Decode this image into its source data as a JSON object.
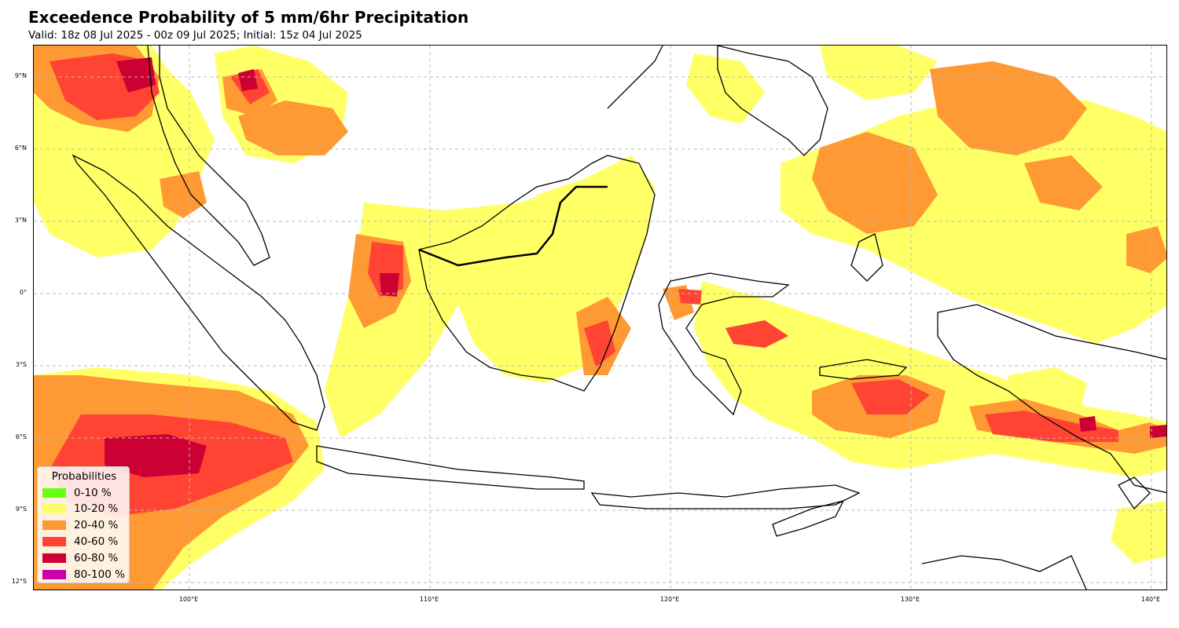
{
  "title": "Exceedence Probability of 5 mm/6hr Precipitation",
  "subtitle": "Valid: 18z 08 Jul 2025 - 00z 09 Jul 2025; Initial: 15z 04 Jul 2025",
  "map": {
    "region": "Maritime Continent / Indonesia",
    "lon_range": [
      93.5,
      140.7
    ],
    "lat_range": [
      -12.5,
      10.2
    ],
    "gridlines": "dashed",
    "lat_ticks": [
      {
        "value": 9,
        "label": "9°N"
      },
      {
        "value": 6,
        "label": "6°N"
      },
      {
        "value": 3,
        "label": "3°N"
      },
      {
        "value": 0,
        "label": "0°"
      },
      {
        "value": -3,
        "label": "3°S"
      },
      {
        "value": -6,
        "label": "6°S"
      },
      {
        "value": -9,
        "label": "9°S"
      },
      {
        "value": -12,
        "label": "12°S"
      }
    ],
    "lon_ticks": [
      {
        "value": 100,
        "label": "100°E"
      },
      {
        "value": 110,
        "label": "110°E"
      },
      {
        "value": 120,
        "label": "120°E"
      },
      {
        "value": 130,
        "label": "130°E"
      },
      {
        "value": 140,
        "label": "140°E"
      }
    ]
  },
  "legend": {
    "title": "Probabilities",
    "placement": "bottom-left",
    "items": [
      {
        "label": "0-10 %",
        "color": "#66ff11"
      },
      {
        "label": "10-20 %",
        "color": "#ffff66"
      },
      {
        "label": "20-40 %",
        "color": "#ff9933"
      },
      {
        "label": "40-60 %",
        "color": "#ff4433"
      },
      {
        "label": "60-80 %",
        "color": "#cc0033"
      },
      {
        "label": "80-100 %",
        "color": "#cc00aa"
      }
    ]
  }
}
